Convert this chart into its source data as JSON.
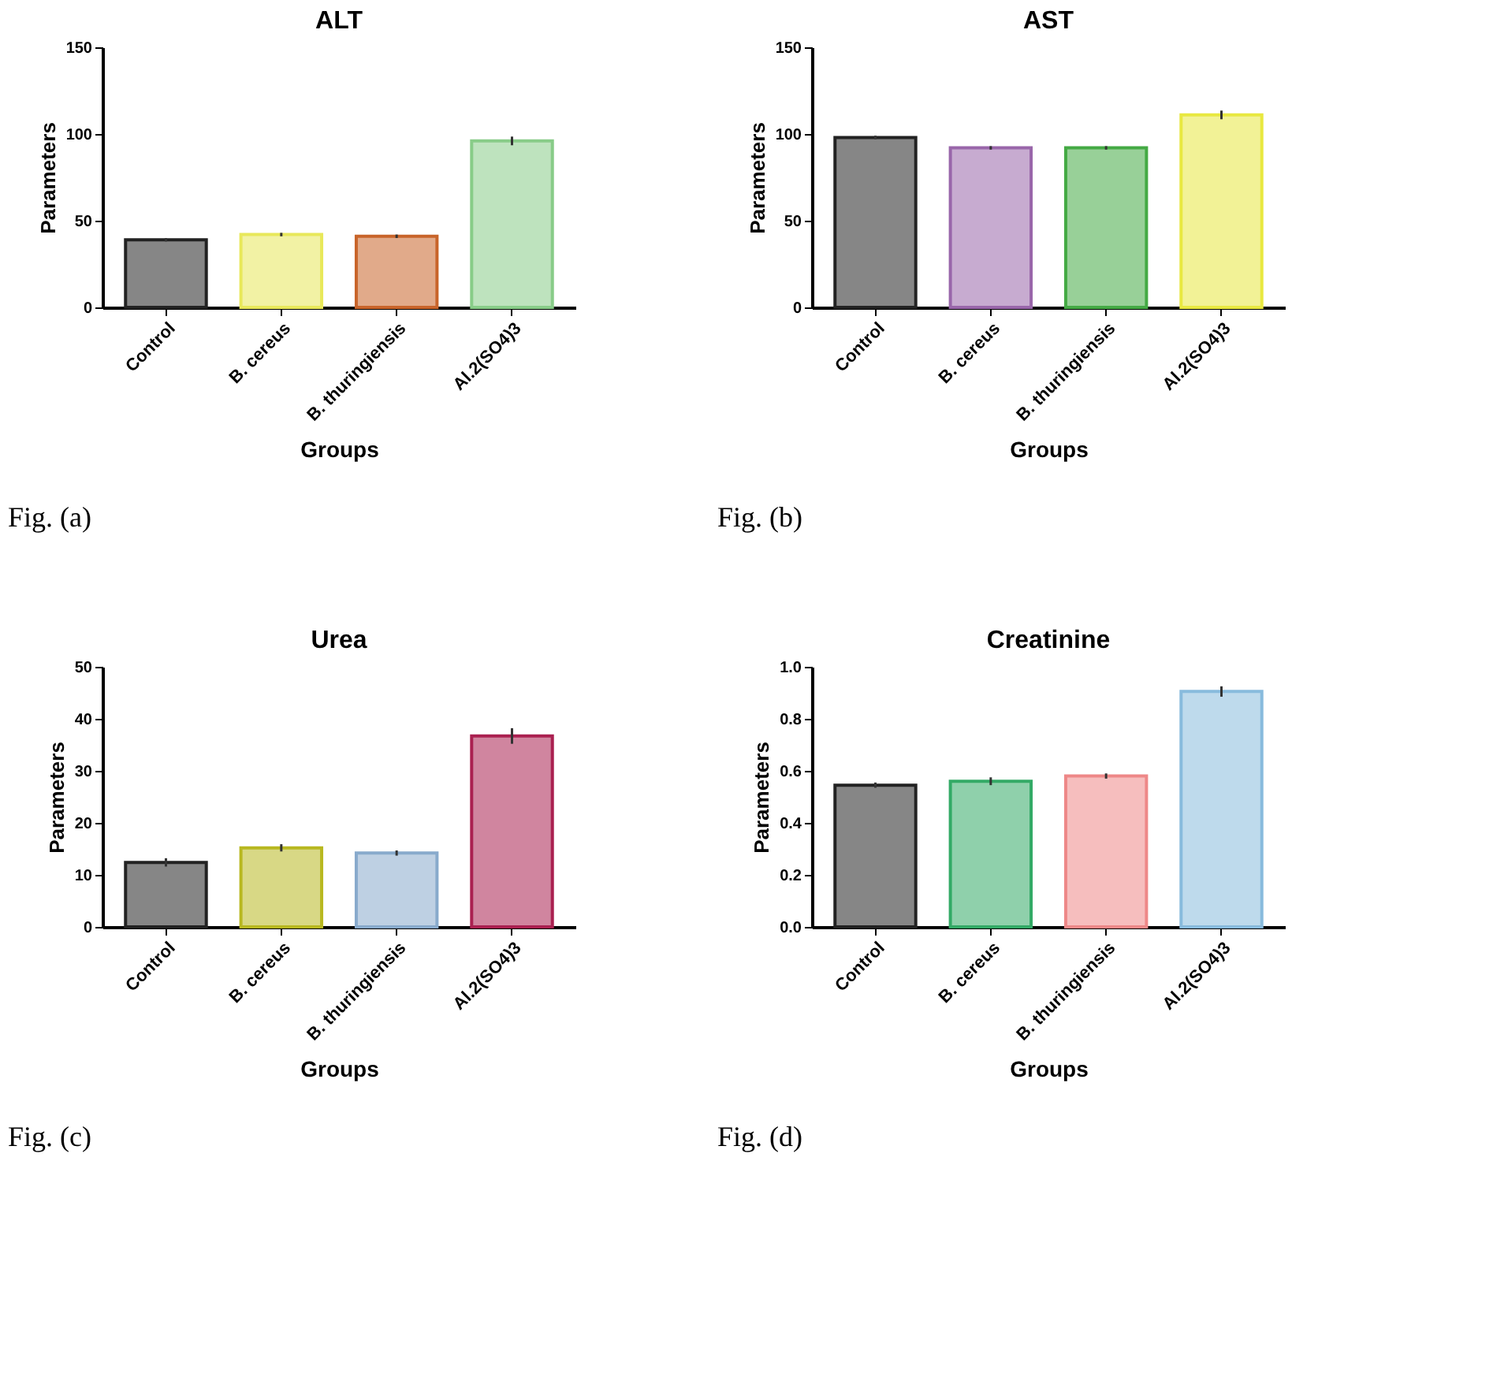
{
  "chart_data": [
    {
      "type": "bar",
      "title": "ALT",
      "xlabel": "Groups",
      "ylabel": "Parameters",
      "categories": [
        "Control",
        "B. cereus",
        "B. thuringiensis",
        "Al.2(SO4)3"
      ],
      "values": [
        39,
        42,
        41,
        96
      ],
      "errors": [
        1,
        1,
        1,
        2.5
      ],
      "colors": [
        "#222222",
        "#e8e85a",
        "#c8642a",
        "#88cc88"
      ],
      "ylim": [
        0,
        150
      ],
      "yticks": [
        0,
        50,
        100,
        150
      ],
      "annotations": [
        "Fig. (a)"
      ]
    },
    {
      "type": "bar",
      "title": "AST",
      "xlabel": "Groups",
      "ylabel": "Parameters",
      "categories": [
        "Control",
        "B. cereus",
        "B. thuringiensis",
        "Al.2(SO4)3"
      ],
      "values": [
        98,
        92,
        92,
        111
      ],
      "errors": [
        1,
        1,
        1,
        2.5
      ],
      "colors": [
        "#222222",
        "#9966aa",
        "#44aa44",
        "#e8e840"
      ],
      "ylim": [
        0,
        150
      ],
      "yticks": [
        0,
        50,
        100,
        150
      ],
      "annotations": [
        "Fig. (b)"
      ]
    },
    {
      "type": "bar",
      "title": "Urea",
      "xlabel": "Groups",
      "ylabel": "Parameters",
      "categories": [
        "Control",
        "B. cereus",
        "B. thuringiensis",
        "Al.2(SO4)3"
      ],
      "values": [
        12.4,
        15.2,
        14.2,
        36.7
      ],
      "errors": [
        0.8,
        0.7,
        0.5,
        1.5
      ],
      "colors": [
        "#222222",
        "#b8b820",
        "#88aacc",
        "#aa2050"
      ],
      "ylim": [
        0,
        50
      ],
      "yticks": [
        0,
        10,
        20,
        30,
        40,
        50
      ],
      "annotations": [
        "Fig. (c)"
      ]
    },
    {
      "type": "bar",
      "title": "Creatinine",
      "xlabel": "Groups",
      "ylabel": "Parameters",
      "categories": [
        "Control",
        "B. cereus",
        "B. thuringiensis",
        "Al.2(SO4)3"
      ],
      "values": [
        0.545,
        0.56,
        0.58,
        0.905
      ],
      "errors": [
        0.01,
        0.015,
        0.01,
        0.02
      ],
      "colors": [
        "#222222",
        "#33aa66",
        "#ee8888",
        "#88bbdd"
      ],
      "ylim": [
        0,
        1.0
      ],
      "yticks": [
        {
          "value": 0,
          "label": "0.0"
        },
        {
          "value": 0.2,
          "label": "0.2"
        },
        {
          "value": 0.4,
          "label": "0.4"
        },
        {
          "value": 0.6,
          "label": "0.6"
        },
        {
          "value": 0.8,
          "label": "0.8"
        },
        {
          "value": 1.0,
          "label": "1.0"
        }
      ],
      "annotations": [
        "Fig. (d)"
      ]
    }
  ]
}
